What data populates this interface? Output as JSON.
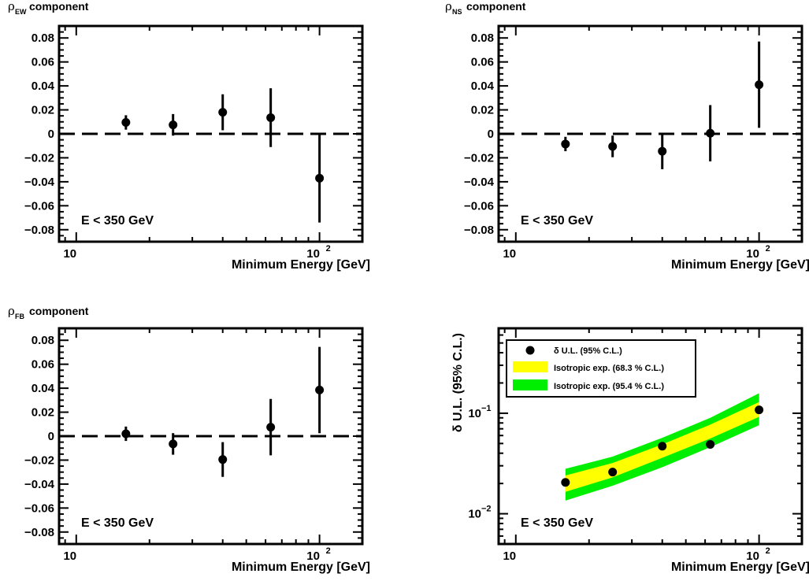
{
  "chart_data": [
    {
      "type": "scatter",
      "panel_title": {
        "symbol": "ρ",
        "subscript": "EW",
        "suffix": "component"
      },
      "xlabel": "Minimum Energy [GeV]",
      "x_scale": "log",
      "xlim": [
        8.5,
        150
      ],
      "ylim": [
        -0.09,
        0.09
      ],
      "yticks": [
        "0.08",
        "0.06",
        "0.04",
        "0.02",
        "0",
        "−0.02",
        "−0.04",
        "−0.06",
        "−0.08"
      ],
      "xticks": [
        {
          "base": "10",
          "exp": ""
        },
        {
          "base": "10",
          "exp": "2"
        }
      ],
      "annotation": "E < 350 GeV",
      "reference_line": {
        "y": 0,
        "style": "dashed"
      },
      "series": [
        {
          "x": 16,
          "y": 0.0095,
          "err": 0.006
        },
        {
          "x": 25,
          "y": 0.0075,
          "err": 0.009
        },
        {
          "x": 40,
          "y": 0.018,
          "err": 0.015
        },
        {
          "x": 63,
          "y": 0.0135,
          "err": 0.0245
        },
        {
          "x": 100,
          "y": -0.037,
          "err": 0.037
        }
      ]
    },
    {
      "type": "scatter",
      "panel_title": {
        "symbol": "ρ",
        "subscript": "NS",
        "suffix": "component"
      },
      "xlabel": "Minimum Energy [GeV]",
      "x_scale": "log",
      "xlim": [
        8.5,
        150
      ],
      "ylim": [
        -0.09,
        0.09
      ],
      "yticks": [
        "0.08",
        "0.06",
        "0.04",
        "0.02",
        "0",
        "−0.02",
        "−0.04",
        "−0.06",
        "−0.08"
      ],
      "xticks": [
        {
          "base": "10",
          "exp": ""
        },
        {
          "base": "10",
          "exp": "2"
        }
      ],
      "annotation": "E < 350 GeV",
      "reference_line": {
        "y": 0,
        "style": "dashed"
      },
      "series": [
        {
          "x": 16,
          "y": -0.0085,
          "err": 0.006
        },
        {
          "x": 25,
          "y": -0.0105,
          "err": 0.009
        },
        {
          "x": 40,
          "y": -0.0145,
          "err": 0.015
        },
        {
          "x": 63,
          "y": 0.0005,
          "err": 0.0235
        },
        {
          "x": 100,
          "y": 0.041,
          "err": 0.036
        }
      ]
    },
    {
      "type": "scatter",
      "panel_title": {
        "symbol": "ρ",
        "subscript": "FB",
        "suffix": "component"
      },
      "xlabel": "Minimum Energy [GeV]",
      "x_scale": "log",
      "xlim": [
        8.5,
        150
      ],
      "ylim": [
        -0.09,
        0.09
      ],
      "yticks": [
        "0.08",
        "0.06",
        "0.04",
        "0.02",
        "0",
        "−0.02",
        "−0.04",
        "−0.06",
        "−0.08"
      ],
      "xticks": [
        {
          "base": "10",
          "exp": ""
        },
        {
          "base": "10",
          "exp": "2"
        }
      ],
      "annotation": "E < 350 GeV",
      "reference_line": {
        "y": 0,
        "style": "dashed"
      },
      "series": [
        {
          "x": 16,
          "y": 0.002,
          "err": 0.006
        },
        {
          "x": 25,
          "y": -0.0065,
          "err": 0.009
        },
        {
          "x": 40,
          "y": -0.0195,
          "err": 0.0145
        },
        {
          "x": 63,
          "y": 0.0075,
          "err": 0.0235
        },
        {
          "x": 100,
          "y": 0.0385,
          "err": 0.036
        }
      ]
    },
    {
      "type": "scatter",
      "ylabel": "δ U.L. (95% C.L.)",
      "xlabel": "Minimum Energy [GeV]",
      "x_scale": "log",
      "y_scale": "log",
      "xlim": [
        8.5,
        150
      ],
      "ylim": [
        0.005,
        0.7
      ],
      "yticks": [
        {
          "base": "10",
          "exp": "−1",
          "value": 0.1
        },
        {
          "base": "10",
          "exp": "−2",
          "value": 0.01
        }
      ],
      "xticks": [
        {
          "base": "10",
          "exp": ""
        },
        {
          "base": "10",
          "exp": "2"
        }
      ],
      "annotation": "E < 350 GeV",
      "legend": {
        "position": "top-left",
        "entries": [
          {
            "label": "δ U.L. (95% C.L.)",
            "marker": "dot"
          },
          {
            "label": "Isotropic exp. (68.3 % C.L.)",
            "color": "#ffff00"
          },
          {
            "label": "Isotropic exp. (95.4 % C.L.)",
            "color": "#00ee00"
          }
        ]
      },
      "points": [
        {
          "x": 16,
          "y": 0.0205
        },
        {
          "x": 25,
          "y": 0.026
        },
        {
          "x": 40,
          "y": 0.047
        },
        {
          "x": 63,
          "y": 0.049
        },
        {
          "x": 100,
          "y": 0.108
        }
      ],
      "band_x": [
        16,
        25,
        40,
        63,
        100
      ],
      "band_95_low": [
        0.0135,
        0.019,
        0.029,
        0.046,
        0.076
      ],
      "band_95_high": [
        0.028,
        0.037,
        0.057,
        0.09,
        0.158
      ],
      "band_68_low": [
        0.0165,
        0.023,
        0.036,
        0.056,
        0.092
      ],
      "band_68_high": [
        0.024,
        0.032,
        0.049,
        0.077,
        0.129
      ],
      "colors": {
        "band_68": "#ffff00",
        "band_95": "#00ee00"
      }
    }
  ]
}
